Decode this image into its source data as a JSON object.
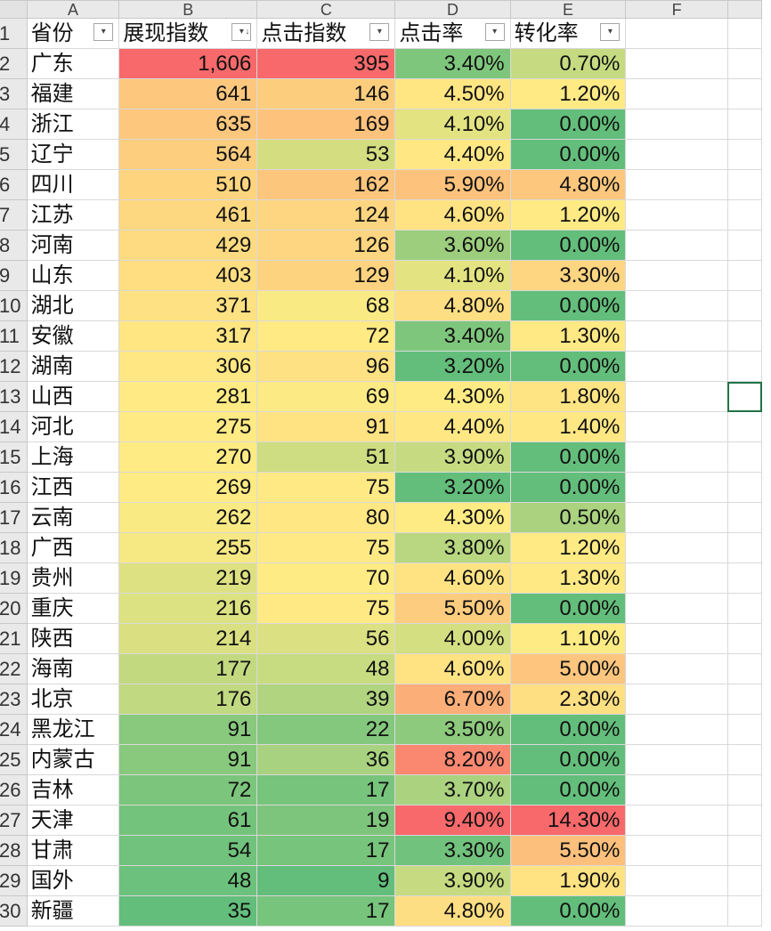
{
  "columns": [
    "A",
    "B",
    "C",
    "D",
    "E",
    "F"
  ],
  "headers": {
    "province": "省份",
    "impressions": "展现指数",
    "clicks": "点击指数",
    "ctr": "点击率",
    "conversion": "转化率"
  },
  "rows": [
    {
      "num": "2",
      "province": "广东",
      "impressions": "1,606",
      "clicks": "395",
      "ctr": "3.40%",
      "conversion": "0.70%"
    },
    {
      "num": "3",
      "province": "福建",
      "impressions": "641",
      "clicks": "146",
      "ctr": "4.50%",
      "conversion": "1.20%"
    },
    {
      "num": "4",
      "province": "浙江",
      "impressions": "635",
      "clicks": "169",
      "ctr": "4.10%",
      "conversion": "0.00%"
    },
    {
      "num": "5",
      "province": "辽宁",
      "impressions": "564",
      "clicks": "53",
      "ctr": "4.40%",
      "conversion": "0.00%"
    },
    {
      "num": "6",
      "province": "四川",
      "impressions": "510",
      "clicks": "162",
      "ctr": "5.90%",
      "conversion": "4.80%"
    },
    {
      "num": "7",
      "province": "江苏",
      "impressions": "461",
      "clicks": "124",
      "ctr": "4.60%",
      "conversion": "1.20%"
    },
    {
      "num": "8",
      "province": "河南",
      "impressions": "429",
      "clicks": "126",
      "ctr": "3.60%",
      "conversion": "0.00%"
    },
    {
      "num": "9",
      "province": "山东",
      "impressions": "403",
      "clicks": "129",
      "ctr": "4.10%",
      "conversion": "3.30%"
    },
    {
      "num": "10",
      "province": "湖北",
      "impressions": "371",
      "clicks": "68",
      "ctr": "4.80%",
      "conversion": "0.00%"
    },
    {
      "num": "11",
      "province": "安徽",
      "impressions": "317",
      "clicks": "72",
      "ctr": "3.40%",
      "conversion": "1.30%"
    },
    {
      "num": "12",
      "province": "湖南",
      "impressions": "306",
      "clicks": "96",
      "ctr": "3.20%",
      "conversion": "0.00%"
    },
    {
      "num": "13",
      "province": "山西",
      "impressions": "281",
      "clicks": "69",
      "ctr": "4.30%",
      "conversion": "1.80%"
    },
    {
      "num": "14",
      "province": "河北",
      "impressions": "275",
      "clicks": "91",
      "ctr": "4.40%",
      "conversion": "1.40%"
    },
    {
      "num": "15",
      "province": "上海",
      "impressions": "270",
      "clicks": "51",
      "ctr": "3.90%",
      "conversion": "0.00%"
    },
    {
      "num": "16",
      "province": "江西",
      "impressions": "269",
      "clicks": "75",
      "ctr": "3.20%",
      "conversion": "0.00%"
    },
    {
      "num": "17",
      "province": "云南",
      "impressions": "262",
      "clicks": "80",
      "ctr": "4.30%",
      "conversion": "0.50%"
    },
    {
      "num": "18",
      "province": "广西",
      "impressions": "255",
      "clicks": "75",
      "ctr": "3.80%",
      "conversion": "1.20%"
    },
    {
      "num": "19",
      "province": "贵州",
      "impressions": "219",
      "clicks": "70",
      "ctr": "4.60%",
      "conversion": "1.30%"
    },
    {
      "num": "20",
      "province": "重庆",
      "impressions": "216",
      "clicks": "75",
      "ctr": "5.50%",
      "conversion": "0.00%"
    },
    {
      "num": "21",
      "province": "陕西",
      "impressions": "214",
      "clicks": "56",
      "ctr": "4.00%",
      "conversion": "1.10%"
    },
    {
      "num": "22",
      "province": "海南",
      "impressions": "177",
      "clicks": "48",
      "ctr": "4.60%",
      "conversion": "5.00%"
    },
    {
      "num": "23",
      "province": "北京",
      "impressions": "176",
      "clicks": "39",
      "ctr": "6.70%",
      "conversion": "2.30%"
    },
    {
      "num": "24",
      "province": "黑龙江",
      "impressions": "91",
      "clicks": "22",
      "ctr": "3.50%",
      "conversion": "0.00%"
    },
    {
      "num": "25",
      "province": "内蒙古",
      "impressions": "91",
      "clicks": "36",
      "ctr": "8.20%",
      "conversion": "0.00%"
    },
    {
      "num": "26",
      "province": "吉林",
      "impressions": "72",
      "clicks": "17",
      "ctr": "3.70%",
      "conversion": "0.00%"
    },
    {
      "num": "27",
      "province": "天津",
      "impressions": "61",
      "clicks": "19",
      "ctr": "9.40%",
      "conversion": "14.30%"
    },
    {
      "num": "28",
      "province": "甘肃",
      "impressions": "54",
      "clicks": "17",
      "ctr": "3.30%",
      "conversion": "5.50%"
    },
    {
      "num": "29",
      "province": "国外",
      "impressions": "48",
      "clicks": "9",
      "ctr": "3.90%",
      "conversion": "1.90%"
    },
    {
      "num": "30",
      "province": "新疆",
      "impressions": "35",
      "clicks": "17",
      "ctr": "4.80%",
      "conversion": "0.00%"
    }
  ],
  "colors": {
    "scale_green": "#63be7b",
    "scale_yellow": "#ffeb84",
    "scale_red": "#f8696b",
    "selection": "#217346"
  },
  "icons": {
    "filter": "filter-dropdown-icon",
    "sort_desc": "sort-descending-icon"
  }
}
